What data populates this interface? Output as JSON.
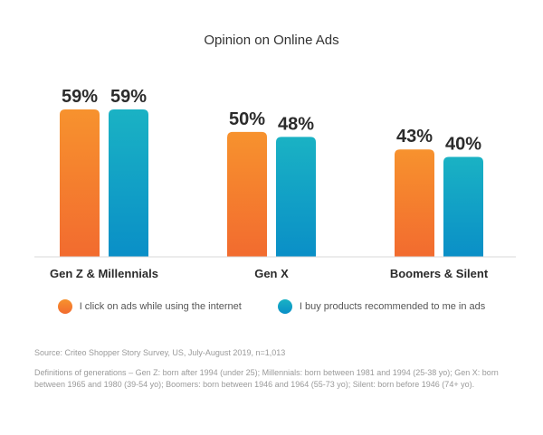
{
  "chart_data": {
    "type": "bar",
    "title": "Opinion on Online Ads",
    "categories": [
      "Gen Z & Millennials",
      "Gen X",
      "Boomers & Silent"
    ],
    "series": [
      {
        "name": "I click on ads while using the internet",
        "values": [
          59,
          50,
          43
        ],
        "color": "#f26b2f",
        "color_top": "#f7922e"
      },
      {
        "name": "I buy products recommended to me in ads",
        "values": [
          59,
          48,
          40
        ],
        "color": "#0a8fc7",
        "color_top": "#1ab2c4"
      }
    ],
    "data_labels": [
      [
        "59%",
        "50%",
        "43%"
      ],
      [
        "59%",
        "48%",
        "40%"
      ]
    ],
    "ylim": [
      0,
      70
    ],
    "grid": false,
    "legend_placement": "bottom"
  },
  "source": "Source: Criteo Shopper Story Survey, US, July-August 2019, n=1,013",
  "definitions": "Definitions of generations – Gen Z: born after 1994 (under 25); Millennials: born between 1981 and 1994 (25-38 yo); Gen X: born between 1965 and 1980 (39-54 yo); Boomers: born between 1946 and 1964 (55-73 yo); Silent: born before 1946 (74+ yo)."
}
